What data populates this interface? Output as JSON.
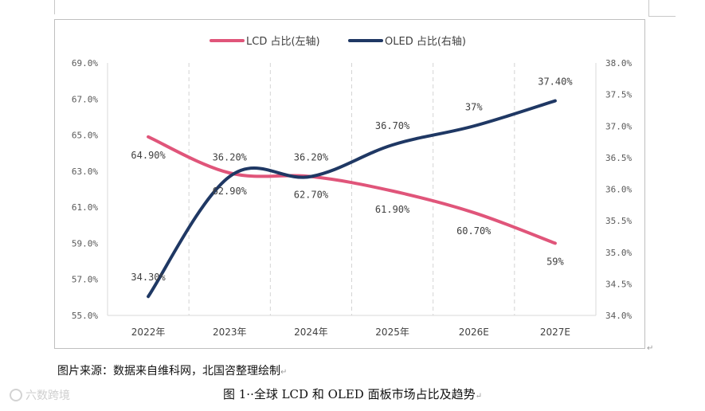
{
  "chart_data": {
    "type": "line",
    "categories": [
      "2022年",
      "2023年",
      "2024年",
      "2025年",
      "2026E",
      "2027E"
    ],
    "series": [
      {
        "name": "LCD 占比(左轴)",
        "axis": "left",
        "color": "#e0557a",
        "values": [
          64.9,
          62.9,
          62.7,
          61.9,
          60.7,
          59.0
        ],
        "labels": [
          "64.90%",
          "62.90%",
          "62.70%",
          "61.90%",
          "60.70%",
          "59%"
        ]
      },
      {
        "name": "OLED 占比(右轴)",
        "axis": "right",
        "color": "#1f3864",
        "values": [
          34.3,
          36.2,
          36.2,
          36.7,
          37.0,
          37.4
        ],
        "labels": [
          "34.30%",
          "36.20%",
          "36.20%",
          "36.70%",
          "37%",
          "37.40%"
        ]
      }
    ],
    "left_axis": {
      "range": [
        55.0,
        69.0
      ],
      "ticks": [
        55.0,
        57.0,
        59.0,
        61.0,
        63.0,
        65.0,
        67.0,
        69.0
      ],
      "tick_labels": [
        "55.0%",
        "57.0%",
        "59.0%",
        "61.0%",
        "63.0%",
        "65.0%",
        "67.0%",
        "69.0%"
      ]
    },
    "right_axis": {
      "range": [
        34.0,
        38.0
      ],
      "ticks": [
        34.0,
        34.5,
        35.0,
        35.5,
        36.0,
        36.5,
        37.0,
        37.5,
        38.0
      ],
      "tick_labels": [
        "34.0%",
        "34.5%",
        "35.0%",
        "35.5%",
        "36.0%",
        "36.5%",
        "37.0%",
        "37.5%",
        "38.0%"
      ]
    },
    "legend_position": "top-center",
    "grid": "vertical-dashed"
  },
  "caption": "图片来源：数据来自维科网，北国咨整理绘制",
  "figure_title": "图 1··全球 LCD 和 OLED 面板市场占比及趋势",
  "watermark": "六数跨境",
  "para_mark": "↵"
}
